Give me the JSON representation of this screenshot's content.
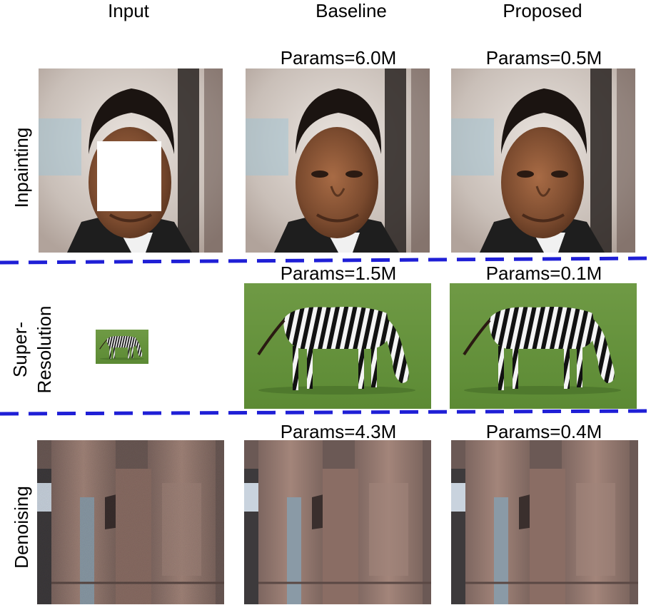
{
  "columns": {
    "input": "Input",
    "baseline": "Baseline",
    "proposed": "Proposed"
  },
  "rows": [
    {
      "label": "Inpainting",
      "baseline_params": "Params=6.0M",
      "proposed_params": "Params=0.5M"
    },
    {
      "label_line1": "Super-",
      "label_line2": "Resolution",
      "baseline_params": "Params=1.5M",
      "proposed_params": "Params=0.1M"
    },
    {
      "label": "Denoising",
      "baseline_params": "Params=4.3M",
      "proposed_params": "Params=0.4M"
    }
  ],
  "colors": {
    "divider": "#1f1fd6"
  },
  "images": {
    "face": "face-photo",
    "face_masked": "face-photo-with-white-mask",
    "zebra": "zebra-grazing-photo",
    "zebra_small": "zebra-thumbnail",
    "stone": "stone-column-photo",
    "stone_noisy": "noisy-stone-column-photo"
  }
}
